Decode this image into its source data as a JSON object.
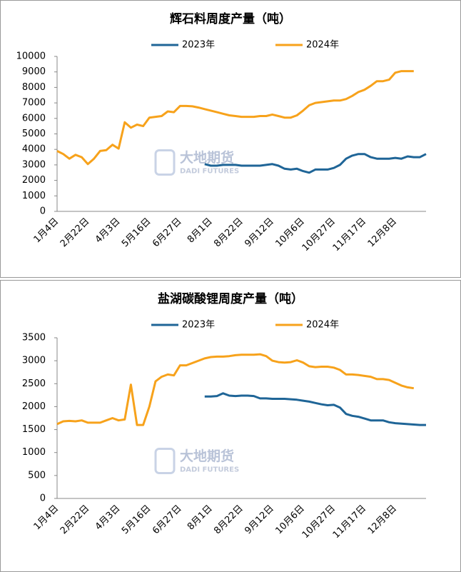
{
  "chart_data": [
    {
      "type": "line",
      "title": "辉石料周度产量（吨）",
      "categories": [
        "1月4日",
        null,
        null,
        null,
        null,
        "2月22日",
        null,
        null,
        null,
        null,
        "4月3日",
        null,
        null,
        null,
        null,
        "5月16日",
        null,
        null,
        null,
        null,
        "6月27日",
        null,
        null,
        null,
        null,
        "8月1日",
        null,
        null,
        null,
        null,
        "8月22日",
        null,
        null,
        null,
        null,
        "9月12日",
        null,
        null,
        null,
        null,
        "10月6日",
        null,
        null,
        null,
        null,
        "10月27日",
        null,
        null,
        null,
        null,
        "11月17日",
        null,
        null,
        null,
        null,
        "12月8日",
        null,
        null,
        null,
        null,
        null
      ],
      "series": [
        {
          "name": "2023年",
          "color": "#1f6597",
          "values": [
            null,
            null,
            null,
            null,
            null,
            null,
            null,
            null,
            null,
            null,
            null,
            null,
            null,
            null,
            null,
            null,
            null,
            null,
            null,
            null,
            null,
            null,
            null,
            null,
            3050,
            2950,
            2950,
            3000,
            3000,
            3000,
            2950,
            2950,
            2950,
            2950,
            3000,
            3050,
            2950,
            2750,
            2700,
            2750,
            2600,
            2500,
            2700,
            2700,
            2700,
            2800,
            3000,
            3400,
            3600,
            3700,
            3700,
            3500,
            3400,
            3400,
            3400,
            3450,
            3400,
            3550,
            3500,
            3500,
            3700
          ]
        },
        {
          "name": "2024年",
          "color": "#f7a21b",
          "values": [
            3900,
            3700,
            3400,
            3650,
            3500,
            3050,
            3400,
            3900,
            3950,
            4300,
            4050,
            5750,
            5400,
            5600,
            5500,
            6050,
            6100,
            6150,
            6450,
            6400,
            6800,
            6800,
            6780,
            6700,
            6600,
            6500,
            6400,
            6300,
            6200,
            6150,
            6100,
            6100,
            6100,
            6150,
            6150,
            6250,
            6150,
            6050,
            6050,
            6200,
            6500,
            6850,
            7000,
            7050,
            7100,
            7150,
            7150,
            7250,
            7450,
            7700,
            7850,
            8100,
            8400,
            8400,
            8500,
            8950,
            9050,
            9050,
            9050,
            null,
            null
          ]
        }
      ],
      "ylim": [
        0,
        10000
      ],
      "yticks": [
        0,
        1000,
        2000,
        3000,
        4000,
        5000,
        6000,
        7000,
        8000,
        9000,
        10000
      ],
      "watermark": {
        "name": "大地期货",
        "sub": "DADI FUTURES"
      }
    },
    {
      "type": "line",
      "title": "盐湖碳酸锂周度产量（吨）",
      "categories": [
        "1月4日",
        null,
        null,
        null,
        null,
        "2月22日",
        null,
        null,
        null,
        null,
        "4月3日",
        null,
        null,
        null,
        null,
        "5月16日",
        null,
        null,
        null,
        null,
        "6月27日",
        null,
        null,
        null,
        null,
        "8月1日",
        null,
        null,
        null,
        null,
        "8月22日",
        null,
        null,
        null,
        null,
        "9月12日",
        null,
        null,
        null,
        null,
        "10月6日",
        null,
        null,
        null,
        null,
        "10月27日",
        null,
        null,
        null,
        null,
        "11月17日",
        null,
        null,
        null,
        null,
        "12月8日",
        null,
        null,
        null,
        null,
        null
      ],
      "series": [
        {
          "name": "2023年",
          "color": "#1f6597",
          "values": [
            null,
            null,
            null,
            null,
            null,
            null,
            null,
            null,
            null,
            null,
            null,
            null,
            null,
            null,
            null,
            null,
            null,
            null,
            null,
            null,
            null,
            null,
            null,
            null,
            2220,
            2220,
            2230,
            2290,
            2240,
            2230,
            2240,
            2240,
            2230,
            2180,
            2180,
            2170,
            2170,
            2170,
            2160,
            2150,
            2130,
            2110,
            2080,
            2050,
            2030,
            2040,
            1980,
            1840,
            1800,
            1780,
            1740,
            1700,
            1700,
            1700,
            1660,
            1640,
            1630,
            1620,
            1610,
            1600,
            1600
          ]
        },
        {
          "name": "2024年",
          "color": "#f7a21b",
          "values": [
            1620,
            1680,
            1690,
            1680,
            1700,
            1650,
            1650,
            1650,
            1700,
            1750,
            1700,
            1720,
            2480,
            1600,
            1600,
            2000,
            2550,
            2650,
            2700,
            2680,
            2900,
            2900,
            2950,
            3000,
            3050,
            3080,
            3090,
            3090,
            3100,
            3120,
            3130,
            3130,
            3130,
            3140,
            3100,
            3000,
            2970,
            2960,
            2970,
            3010,
            2960,
            2880,
            2860,
            2870,
            2870,
            2850,
            2800,
            2700,
            2700,
            2690,
            2670,
            2650,
            2600,
            2600,
            2580,
            2520,
            2460,
            2420,
            2400,
            null,
            null
          ]
        }
      ],
      "ylim": [
        0,
        3500
      ],
      "yticks": [
        0,
        500,
        1000,
        1500,
        2000,
        2500,
        3000,
        3500
      ],
      "watermark": {
        "name": "大地期货",
        "sub": "DADI FUTURES"
      }
    }
  ]
}
